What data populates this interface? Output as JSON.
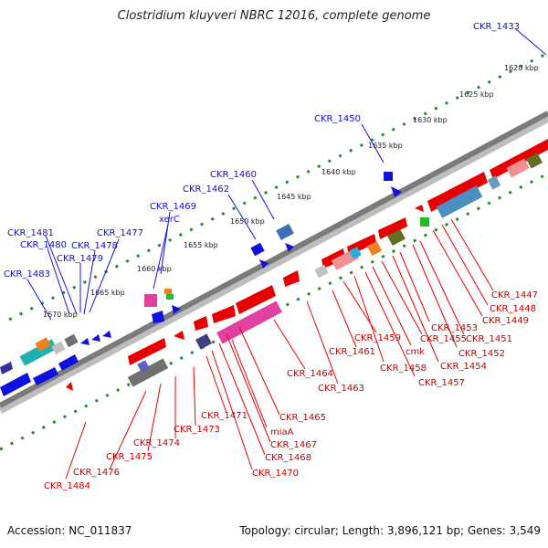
{
  "title": "Clostridium kluyveri NBRC 12016, complete genome",
  "footer": {
    "accession": "Accession: NC_011837",
    "topology": "Topology: circular; Length: 3,896,121 bp; Genes: 3,549"
  },
  "kbp_ticks": [
    "1620 kbp",
    "1625 kbp",
    "1630 kbp",
    "1635 kbp",
    "1640 kbp",
    "1645 kbp",
    "1650 kbp",
    "1655 kbp",
    "1660 kbp",
    "1665 kbp",
    "1670 kbp"
  ],
  "forward_labels": [
    "CKR_1433",
    "CKR_1450",
    "CKR_1460",
    "CKR_1462",
    "xerC",
    "CKR_1469",
    "CKR_1477",
    "CKR_1481",
    "CKR_1480",
    "CKR_1478",
    "CKR_1479",
    "CKR_1483"
  ],
  "reverse_labels": [
    "CKR_1447",
    "CKR_1448",
    "CKR_1449",
    "CKR_1451",
    "CKR_1452",
    "CKR_1453",
    "CKR_1454",
    "CKR_1455",
    "CKR_1457",
    "cmk",
    "CKR_1458",
    "CKR_1459",
    "CKR_1461",
    "CKR_1463",
    "CKR_1464",
    "CKR_1465",
    "CKR_1467",
    "miaA",
    "CKR_1468",
    "CKR_1470",
    "CKR_1471",
    "CKR_1473",
    "CKR_1474",
    "CKR_1475",
    "CKR_1476",
    "CKR_1484"
  ],
  "colors": {
    "forward": "#1010e0",
    "reverse": "#e80000",
    "backbone": "#888888",
    "tick": "#2a8a2a"
  }
}
